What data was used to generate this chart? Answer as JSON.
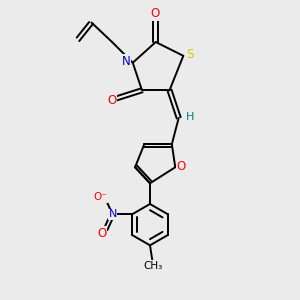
{
  "background_color": "#ebebeb",
  "atom_colors": {
    "C": "#000000",
    "N": "#0000cc",
    "O": "#ff0000",
    "S": "#cccc00",
    "H": "#008080"
  },
  "figsize": [
    3.0,
    3.0
  ],
  "dpi": 100
}
